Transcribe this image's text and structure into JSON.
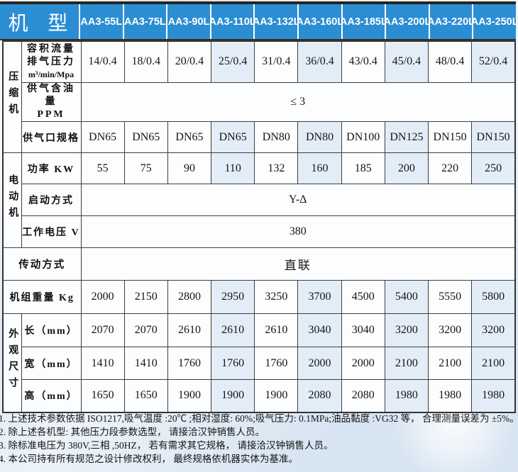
{
  "header": {
    "model_label": "机 型",
    "models": [
      "AA3-55L",
      "AA3-75L",
      "AA3-90L",
      "AA3-110L",
      "AA3-132L",
      "AA3-160L",
      "AA3-185L",
      "AA3-200L",
      "AA3-220L",
      "AA3-250L"
    ]
  },
  "groups": {
    "compressor": "压缩机",
    "motor": "电动机",
    "dimensions": "外观尺寸"
  },
  "rows": {
    "flow": {
      "label_line1": "容积流量",
      "label_line2": "排气压力",
      "unit": "m³/min/Mpa",
      "values": [
        "14/0.4",
        "18/0.4",
        "20/0.4",
        "25/0.4",
        "31/0.4",
        "36/0.4",
        "43/0.4",
        "45/0.4",
        "48/0.4",
        "52/0.4"
      ]
    },
    "oil_content": {
      "label_line1": "供气含油量",
      "label_line2": "PPM",
      "value": "≤ 3"
    },
    "outlet": {
      "label": "供气口规格",
      "values": [
        "DN65",
        "DN65",
        "DN65",
        "DN65",
        "DN80",
        "DN80",
        "DN100",
        "DN125",
        "DN150",
        "DN150"
      ]
    },
    "power": {
      "label": "功率 KW",
      "values": [
        "55",
        "75",
        "90",
        "110",
        "132",
        "160",
        "185",
        "200",
        "220",
        "250"
      ]
    },
    "start_mode": {
      "label": "启动方式",
      "value": "Y-Δ"
    },
    "voltage": {
      "label": "工作电压 V",
      "value": "380"
    },
    "transmission": {
      "label": "传动方式",
      "value": "直联"
    },
    "weight": {
      "label": "机组重量 Kg",
      "values": [
        "2000",
        "2150",
        "2800",
        "2950",
        "3250",
        "3700",
        "4500",
        "5400",
        "5550",
        "5800"
      ]
    },
    "length": {
      "label": "长（mm）",
      "values": [
        "2070",
        "2070",
        "2610",
        "2610",
        "2610",
        "3040",
        "3040",
        "3200",
        "3200",
        "3200"
      ]
    },
    "width": {
      "label": "宽（mm）",
      "values": [
        "1410",
        "1410",
        "1760",
        "1760",
        "1760",
        "2000",
        "2000",
        "2100",
        "2100",
        "2100"
      ]
    },
    "height": {
      "label": "高（mm）",
      "values": [
        "1650",
        "1650",
        "1900",
        "1900",
        "1900",
        "2080",
        "2080",
        "1980",
        "1980",
        "1980"
      ]
    }
  },
  "notes": [
    "1. 上述技术参数依据 ISO1217,吸气温度 :20℃ ;相对湿度: 60%;吸气压力: 0.1MPa;油品黏度 :VG32 等， 合理测量误差为 ±5%。",
    "2. 除上述各机型: 其他压力段参数选型， 请接洽汉钟销售人员。",
    "3. 除标准电压为 380V,三相 ,50HZ， 若有需求其它规格， 请接洽汉钟销售人员。",
    "4. 本公司持有所有规范之设计修改权利， 最终规格依机器实体为基准。"
  ],
  "colors": {
    "header_blue": "#2b8ed3",
    "column_tint": "#e3edf7",
    "grid_border": "#3e3e3e",
    "page_background": "#e7edf5"
  }
}
